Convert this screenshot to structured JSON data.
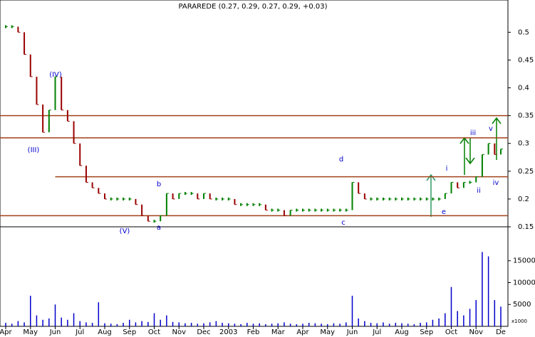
{
  "chart_data": {
    "type": "ohlc-weekly",
    "title": "PARAREDE (0.27, 0.29, 0.27, 0.29, +0.03)",
    "categories": [
      "Apr",
      null,
      null,
      null,
      "May",
      null,
      null,
      null,
      "Jun",
      null,
      null,
      null,
      "Jul",
      null,
      null,
      null,
      "Aug",
      null,
      null,
      null,
      "Sep",
      null,
      null,
      null,
      "Oct",
      null,
      null,
      null,
      "Nov",
      null,
      null,
      null,
      "Dec",
      null,
      null,
      null,
      "2003",
      null,
      null,
      null,
      "Feb",
      null,
      null,
      null,
      "Mar",
      null,
      null,
      null,
      "Apr",
      null,
      null,
      null,
      "May",
      null,
      null,
      null,
      "Jun",
      null,
      null,
      null,
      "Jul",
      null,
      null,
      null,
      "Aug",
      null,
      null,
      null,
      "Sep",
      null,
      null,
      null,
      "Oct",
      null,
      null,
      null,
      "Nov",
      null,
      null,
      null,
      "De"
    ],
    "series": [
      {
        "name": "Close",
        "color": "#008000",
        "down_color": "#990000",
        "values": [
          0.51,
          0.51,
          0.5,
          0.46,
          0.42,
          0.37,
          0.32,
          0.36,
          0.42,
          0.36,
          0.34,
          0.3,
          0.26,
          0.23,
          0.22,
          0.21,
          0.2,
          0.2,
          0.2,
          0.2,
          0.2,
          0.19,
          0.17,
          0.16,
          0.16,
          0.17,
          0.21,
          0.2,
          0.21,
          0.21,
          0.21,
          0.2,
          0.21,
          0.2,
          0.2,
          0.2,
          0.2,
          0.19,
          0.19,
          0.19,
          0.19,
          0.19,
          0.18,
          0.18,
          0.18,
          0.17,
          0.18,
          0.18,
          0.18,
          0.18,
          0.18,
          0.18,
          0.18,
          0.18,
          0.18,
          0.18,
          0.23,
          0.21,
          0.2,
          0.2,
          0.2,
          0.2,
          0.2,
          0.2,
          0.2,
          0.2,
          0.2,
          0.2,
          0.2,
          0.2,
          0.2,
          0.21,
          0.23,
          0.22,
          0.23,
          0.23,
          0.24,
          0.28,
          0.3,
          0.28,
          0.29
        ]
      },
      {
        "name": "Volume",
        "color": "#0000cc",
        "axis": "y2",
        "values": [
          800,
          600,
          1200,
          900,
          7000,
          2500,
          1500,
          1800,
          5000,
          2000,
          1500,
          3000,
          1200,
          900,
          800,
          5500,
          700,
          600,
          500,
          800,
          1500,
          900,
          1200,
          1000,
          3000,
          1500,
          2500,
          1000,
          900,
          700,
          800,
          600,
          700,
          900,
          1200,
          800,
          700,
          600,
          500,
          800,
          600,
          700,
          500,
          600,
          700,
          900,
          600,
          500,
          600,
          800,
          700,
          600,
          500,
          700,
          600,
          900,
          7000,
          1800,
          1200,
          800,
          700,
          900,
          600,
          800,
          700,
          600,
          500,
          800,
          900,
          1500,
          1800,
          3000,
          9000,
          3500,
          2500,
          4000,
          6000,
          17000,
          16000,
          6000,
          4500
        ]
      }
    ],
    "levels": [
      0.35,
      0.31,
      0.17,
      0.24
    ],
    "ylim": [
      0.15,
      0.558
    ],
    "yticks": [
      0.15,
      0.2,
      0.25,
      0.3,
      0.35,
      0.4,
      0.45,
      0.5
    ],
    "y2lim": [
      0,
      22600
    ],
    "y2ticks": [
      5000,
      10000,
      15000
    ],
    "y2label": "x1000",
    "annotations": [
      "(IV)",
      "(III)",
      "(V)",
      "a",
      "b",
      "c",
      "d",
      "e",
      "i",
      "ii",
      "iii",
      "iv",
      "v"
    ]
  }
}
